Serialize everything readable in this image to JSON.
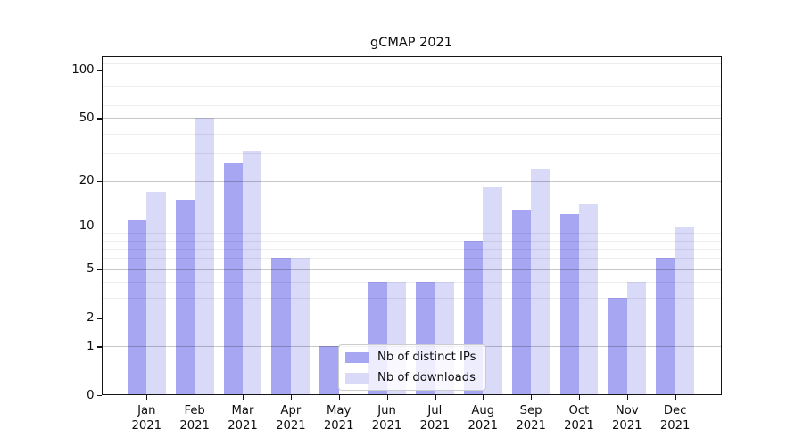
{
  "chart_data": {
    "type": "bar",
    "title": "gCMAP 2021",
    "xlabel": "",
    "ylabel": "",
    "year": "2021",
    "months": [
      "Jan",
      "Feb",
      "Mar",
      "Apr",
      "May",
      "Jun",
      "Jul",
      "Aug",
      "Sep",
      "Oct",
      "Nov",
      "Dec"
    ],
    "categories": [
      "Jan 2021",
      "Feb 2021",
      "Mar 2021",
      "Apr 2021",
      "May 2021",
      "Jun 2021",
      "Jul 2021",
      "Aug 2021",
      "Sep 2021",
      "Oct 2021",
      "Nov 2021",
      "Dec 2021"
    ],
    "series": [
      {
        "name": "Nb of distinct IPs",
        "color": "#a6a6f2",
        "values": [
          11,
          15,
          26,
          6,
          1,
          4,
          4,
          8,
          13,
          12,
          3,
          6
        ]
      },
      {
        "name": "Nb of downloads",
        "color": "#d9d9f8",
        "values": [
          17,
          50,
          31,
          6,
          0,
          4,
          4,
          18,
          24,
          14,
          4,
          10
        ]
      }
    ],
    "yscale": "log10(1+v)",
    "ylim": [
      0,
      121
    ],
    "y_major_ticks": [
      0,
      1,
      2,
      5,
      10,
      20,
      50,
      100
    ],
    "y_minor_gridlines": [
      3,
      4,
      6,
      7,
      8,
      9,
      30,
      40,
      60,
      70,
      80,
      90,
      110
    ],
    "grid": "on",
    "legend_position": "lower center (inside plot)"
  },
  "colors": {
    "background": "#ffffff",
    "bar_ips": "#a6a6f2",
    "bar_downloads": "#d9d9f8",
    "grid_major": "#c8c8c8",
    "grid_minor": "#ededed",
    "axis": "#151515",
    "text": "#0d0d0d",
    "legend_border": "#cccccc"
  }
}
